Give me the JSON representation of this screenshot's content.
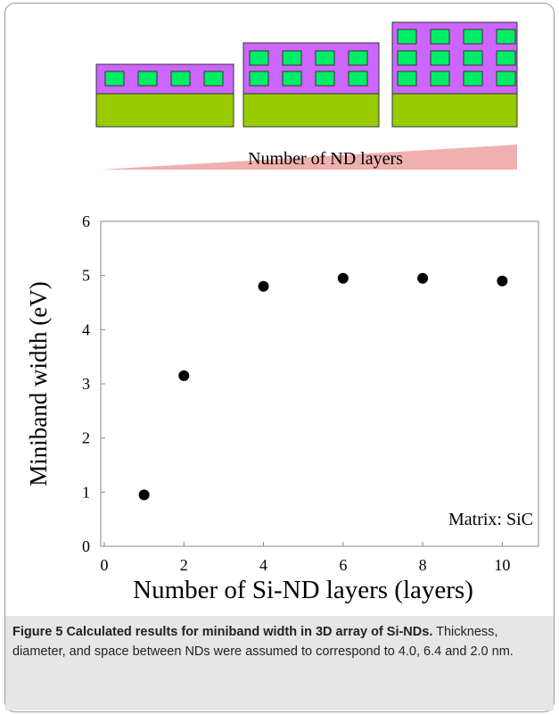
{
  "diagram": {
    "label": "Number of ND layers"
  },
  "chart_data": {
    "type": "scatter",
    "ylabel": "Miniband width (eV)",
    "xlabel": "Number of Si-ND layers (layers)",
    "annotation": "Matrix: SiC",
    "x": [
      1,
      2,
      4,
      6,
      8,
      10
    ],
    "values": [
      0.95,
      3.15,
      4.8,
      4.95,
      4.95,
      4.9
    ],
    "color": "#000000",
    "xlim": [
      0,
      11
    ],
    "xticks": [
      0,
      2,
      4,
      6,
      8,
      10
    ],
    "ylim": [
      0,
      6
    ],
    "yticks": [
      0,
      1,
      2,
      3,
      4,
      5,
      6
    ]
  },
  "caption": {
    "label": "Figure 5",
    "title": "Calculated results for miniband width in 3D array of Si-NDs.",
    "text": "Thickness, diameter, and space between NDs were assumed to correspond to 4.0, 6.4 and 2.0 nm."
  }
}
